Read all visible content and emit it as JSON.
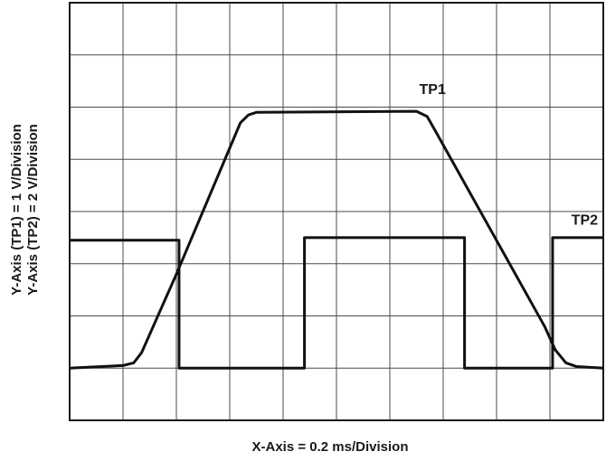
{
  "chart_data": {
    "type": "line",
    "title": "",
    "xlabel": "X-Axis = 0.2 ms/Division",
    "ylabel_lines": [
      "Y-Axis (TP1) = 1 V/Division",
      "Y-Axis (TP2) = 2 V/Division"
    ],
    "grid": true,
    "divisions": {
      "x": 10,
      "y": 8
    },
    "xlim": [
      0,
      10
    ],
    "ylim": [
      0,
      8
    ],
    "x_unit": "divisions",
    "y_unit": "divisions",
    "series": [
      {
        "name": "TP1",
        "points": [
          [
            0.0,
            1.0
          ],
          [
            1.0,
            1.05
          ],
          [
            1.2,
            1.1
          ],
          [
            1.35,
            1.3
          ],
          [
            2.0,
            2.8
          ],
          [
            3.2,
            5.7
          ],
          [
            3.35,
            5.85
          ],
          [
            3.5,
            5.9
          ],
          [
            6.5,
            5.92
          ],
          [
            6.7,
            5.82
          ],
          [
            6.85,
            5.55
          ],
          [
            8.9,
            1.8
          ],
          [
            9.1,
            1.35
          ],
          [
            9.3,
            1.1
          ],
          [
            9.5,
            1.03
          ],
          [
            10.0,
            1.0
          ]
        ]
      },
      {
        "name": "TP2",
        "points": [
          [
            0.0,
            3.45
          ],
          [
            2.05,
            3.45
          ],
          [
            2.05,
            1.0
          ],
          [
            4.4,
            1.0
          ],
          [
            4.4,
            3.5
          ],
          [
            7.4,
            3.5
          ],
          [
            7.4,
            1.0
          ],
          [
            9.05,
            1.0
          ],
          [
            9.05,
            3.5
          ],
          [
            10.0,
            3.5
          ]
        ]
      }
    ]
  }
}
